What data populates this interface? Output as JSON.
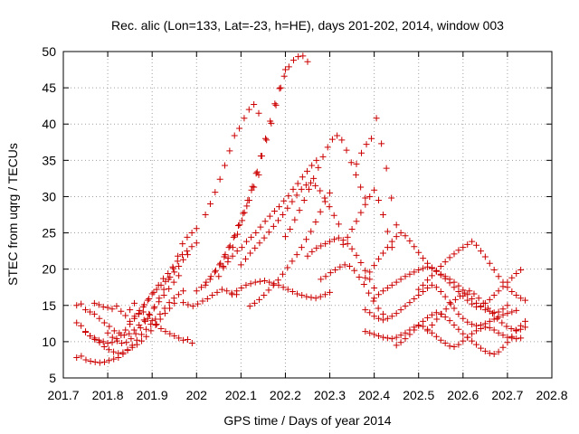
{
  "chart_data": {
    "type": "scatter",
    "title": "Rec. alic (Lon=133, Lat=-23, h=HE), days 201-202, 2014, window 003",
    "xlabel": "GPS time / Days of year 2014",
    "ylabel": "STEC from uqrg / TECUs",
    "xlim": [
      201.7,
      202.8
    ],
    "ylim": [
      5,
      50
    ],
    "xticks": [
      201.7,
      201.8,
      201.9,
      202,
      202.1,
      202.2,
      202.3,
      202.4,
      202.5,
      202.6,
      202.7,
      202.8
    ],
    "xtick_labels": [
      "201.7",
      "201.8",
      "201.9",
      "202",
      "202.1",
      "202.2",
      "202.3",
      "202.4",
      "202.5",
      "202.6",
      "202.7",
      "202.8"
    ],
    "yticks": [
      5,
      10,
      15,
      20,
      25,
      30,
      35,
      40,
      45,
      50
    ],
    "ytick_labels": [
      "5",
      "10",
      "15",
      "20",
      "25",
      "30",
      "35",
      "40",
      "45",
      "50"
    ],
    "grid": true,
    "marker": "plus",
    "color": "#cc0000",
    "series": [
      {
        "tracks": [
          {
            "x_start": 201.73,
            "x_end": 201.99,
            "y": [
              15.0,
              15.2,
              14.4,
              14.1,
              15.3,
              15.1,
              14.8,
              14.7,
              14.5,
              14.9,
              14.2,
              13.6,
              14.4,
              15.3,
              13.8,
              14.1,
              13.2,
              12.9,
              12.4,
              11.8,
              11.4,
              11.1,
              10.8,
              10.5,
              10.2,
              10.3,
              9.8
            ]
          },
          {
            "x_start": 201.73,
            "x_end": 201.98,
            "y": [
              12.6,
              12.2,
              11.3,
              10.8,
              10.5,
              10.2,
              10.0,
              9.8,
              9.9,
              10.4,
              10.9,
              11.6,
              12.4,
              13.2,
              13.9,
              14.8,
              15.7,
              16.6,
              17.2,
              17.8,
              18.3,
              18.9,
              19.6,
              20.4,
              21.3,
              22.0
            ]
          },
          {
            "x_start": 201.73,
            "x_end": 201.97,
            "y": [
              7.8,
              8.0,
              7.5,
              7.3,
              7.2,
              7.1,
              7.2,
              7.4,
              7.6,
              7.8,
              8.3,
              8.9,
              9.5,
              10.2,
              11.0,
              11.7,
              12.4,
              13.1,
              13.8,
              14.6,
              15.4,
              16.0,
              16.5,
              17.0
            ]
          },
          {
            "x_start": 201.75,
            "x_end": 201.95,
            "y": [
              11.4,
              10.8,
              10.3,
              9.9,
              9.3,
              8.9,
              8.6,
              8.4,
              8.5,
              8.8,
              9.2,
              9.6,
              10.1,
              10.7,
              11.5,
              12.3,
              13.1,
              13.9,
              14.6,
              15.3
            ]
          },
          {
            "x_start": 201.77,
            "x_end": 201.96,
            "y": [
              13.8,
              13.2,
              12.6,
              12.1,
              11.5,
              11.2,
              10.9,
              11.1,
              11.6,
              12.3,
              13.0,
              13.8,
              14.6,
              15.5,
              16.4,
              17.3,
              18.2,
              19.1
            ]
          },
          {
            "x_start": 201.8,
            "x_end": 202.0,
            "y": [
              11.2,
              10.6,
              10.1,
              9.8,
              9.9,
              10.4,
              11.1,
              11.9,
              12.8,
              13.7,
              14.8,
              16.0,
              17.2,
              18.6,
              20.1,
              21.8,
              23.5,
              24.4,
              25.0,
              25.6
            ]
          },
          {
            "x_start": 201.85,
            "x_end": 202.0,
            "y": [
              12.8,
              13.5,
              14.3,
              15.1,
              15.9,
              16.8,
              17.8,
              18.7,
              19.4,
              20.3,
              21.1,
              22.0,
              22.5,
              23.1,
              23.6
            ]
          },
          {
            "x_start": 201.97,
            "x_end": 202.09,
            "y": [
              15.4,
              15.1,
              14.9,
              15.2,
              15.6,
              15.9,
              16.4,
              16.8,
              17.2,
              17.0,
              16.7,
              16.5
            ]
          },
          {
            "x_start": 202.0,
            "x_end": 202.14,
            "y": [
              17.0,
              17.5,
              18.2,
              19.0,
              19.8,
              20.8,
              22.0,
              23.2,
              24.6,
              26.1,
              27.8,
              29.5,
              31.3,
              33.0
            ]
          },
          {
            "x_start": 202.02,
            "x_end": 202.2,
            "y": [
              17.8,
              18.6,
              19.6,
              20.6,
              21.7,
              23.0,
              24.4,
              26.0,
              27.7,
              29.5,
              31.4,
              33.4,
              35.6,
              37.8,
              40.1,
              42.6,
              45.0,
              47.5
            ]
          },
          {
            "x_start": 202.05,
            "x_end": 202.25,
            "y": [
              19.0,
              20.2,
              21.5,
              23.0,
              24.8,
              26.7,
              28.7,
              30.9,
              33.2,
              35.6,
              38.0,
              40.4,
              42.8,
              44.9,
              46.6,
              47.9,
              48.8,
              49.3,
              49.4,
              48.6
            ]
          },
          {
            "x_start": 202.06,
            "x_end": 202.27,
            "y": [
              20.4,
              21.0,
              21.8,
              22.5,
              23.0,
              23.8,
              24.4,
              25.0,
              25.8,
              26.6,
              27.3,
              28.0,
              28.6,
              29.4,
              30.1,
              31.0,
              31.8,
              32.7,
              33.5,
              34.3,
              35.0
            ]
          },
          {
            "x_start": 202.08,
            "x_end": 202.3,
            "y": [
              16.5,
              17.0,
              17.4,
              17.8,
              18.0,
              18.2,
              18.3,
              18.4,
              18.2,
              18.0,
              17.8,
              17.5,
              17.2,
              16.9,
              16.6,
              16.4,
              16.2,
              16.1,
              16.0,
              16.2,
              16.5,
              16.8
            ]
          },
          {
            "x_start": 202.02,
            "x_end": 202.14,
            "y": [
              27.5,
              29.0,
              30.6,
              32.4,
              34.3,
              36.3,
              38.4,
              39.4,
              40.8,
              42.0,
              42.7,
              41.5
            ]
          },
          {
            "x_start": 202.1,
            "x_end": 202.32,
            "y": [
              20.6,
              21.4,
              22.2,
              22.9,
              23.6,
              24.3,
              25.1,
              25.9,
              26.7,
              27.5,
              28.4,
              29.3,
              30.2,
              31.0,
              31.6,
              31.9,
              31.5,
              30.8,
              29.8,
              28.6,
              27.4,
              26.2
            ]
          },
          {
            "x_start": 202.12,
            "x_end": 202.3,
            "y": [
              14.9,
              15.3,
              15.8,
              16.4,
              17.1,
              17.8,
              18.5,
              19.3,
              20.2,
              21.1,
              22.0,
              23.0,
              24.1,
              25.2,
              26.5,
              27.9,
              29.3,
              30.5
            ]
          },
          {
            "x_start": 202.2,
            "x_end": 202.38,
            "y": [
              24.5,
              25.5,
              26.8,
              28.1,
              29.5,
              31.0,
              32.5,
              34.0,
              35.5,
              36.8,
              37.9,
              38.4,
              37.8,
              36.4,
              34.7,
              33.0,
              31.3,
              29.8
            ]
          },
          {
            "x_start": 202.25,
            "x_end": 202.4,
            "y": [
              21.8,
              22.4,
              22.9,
              23.2,
              23.5,
              23.8,
              24.1,
              24.3,
              24.0,
              23.5,
              22.8,
              21.9,
              20.9,
              19.8,
              18.6,
              17.4
            ]
          },
          {
            "x_start": 202.28,
            "x_end": 202.42,
            "y": [
              18.6,
              19.0,
              19.5,
              19.9,
              20.3,
              20.6,
              20.4,
              19.8,
              18.9,
              17.9,
              16.7,
              15.6,
              14.6,
              13.8
            ]
          },
          {
            "x_start": 202.33,
            "x_end": 202.44,
            "y": [
              23.4,
              24.4,
              25.5,
              26.6,
              27.8,
              28.9,
              30.0,
              30.9,
              29.5,
              27.5,
              25.2,
              23.0
            ]
          },
          {
            "x_start": 202.36,
            "x_end": 202.45,
            "y": [
              34.5,
              36.0,
              37.2,
              38.0,
              40.8,
              37.3,
              33.9,
              29.8,
              26.1
            ]
          },
          {
            "x_start": 202.38,
            "x_end": 202.73,
            "y": [
              11.4,
              11.2,
              11.0,
              10.8,
              10.6,
              10.5,
              10.4,
              10.6,
              10.9,
              11.2,
              11.6,
              12.0,
              12.3,
              12.1,
              11.7,
              11.2,
              10.7,
              10.2,
              9.8,
              9.4,
              9.3,
              9.6,
              10.1,
              10.6,
              11.1,
              11.5,
              11.8,
              12.0,
              11.9,
              11.6,
              11.2,
              10.9,
              10.6,
              10.5,
              10.4,
              10.5
            ]
          },
          {
            "x_start": 202.38,
            "x_end": 202.72,
            "y": [
              14.4,
              14.0,
              13.5,
              13.2,
              13.0,
              13.2,
              13.5,
              13.9,
              14.4,
              14.9,
              15.4,
              15.9,
              16.4,
              16.9,
              17.4,
              17.8,
              17.5,
              16.9,
              16.2,
              15.4,
              14.6,
              13.8,
              13.2,
              12.7,
              12.4,
              12.2,
              12.3,
              12.5,
              12.8,
              13.1,
              13.4,
              13.7,
              13.9,
              14.1,
              14.3
            ]
          },
          {
            "x_start": 202.4,
            "x_end": 202.73,
            "y": [
              16.0,
              16.5,
              17.0,
              17.4,
              17.8,
              18.2,
              18.6,
              19.0,
              19.3,
              19.6,
              19.9,
              20.1,
              20.3,
              20.1,
              19.7,
              19.2,
              18.7,
              18.1,
              17.5,
              16.9,
              16.3,
              15.7,
              15.2,
              14.8,
              14.9,
              15.3,
              15.8,
              16.4,
              17.0,
              17.6,
              18.2,
              18.8,
              19.4,
              19.9
            ]
          },
          {
            "x_start": 202.38,
            "x_end": 202.7,
            "y": [
              18.8,
              19.6,
              20.5,
              21.4,
              22.2,
              23.0,
              23.8,
              24.5,
              25.0,
              24.6,
              23.9,
              23.1,
              22.3,
              21.5,
              20.8,
              20.2,
              19.7,
              19.3,
              19.0,
              18.6,
              18.2,
              17.7,
              17.1,
              16.5,
              15.9,
              15.3,
              14.8,
              14.4,
              14.2,
              14.0,
              14.1,
              14.5,
              15.0
            ]
          },
          {
            "x_start": 202.45,
            "x_end": 202.74,
            "y": [
              9.5,
              9.9,
              10.4,
              11.0,
              11.6,
              12.2,
              12.8,
              13.3,
              13.7,
              14.0,
              13.8,
              13.4,
              12.9,
              12.3,
              11.7,
              11.1,
              10.6,
              10.1,
              9.6,
              9.1,
              8.7,
              8.4,
              8.3,
              8.6,
              9.2,
              9.9,
              10.7,
              11.5,
              12.2,
              12.8
            ]
          },
          {
            "x_start": 202.5,
            "x_end": 202.74,
            "y": [
              17.2,
              17.8,
              18.5,
              19.1,
              19.8,
              20.4,
              21.0,
              21.6,
              22.1,
              22.6,
              23.0,
              23.4,
              23.8,
              23.3,
              22.5,
              21.7,
              20.8,
              19.9,
              19.0,
              18.2,
              17.5,
              16.9,
              16.4,
              16.0,
              15.7
            ]
          },
          {
            "x_start": 202.52,
            "x_end": 202.74,
            "y": [
              11.5,
              12.3,
              13.1,
              13.8,
              14.5,
              15.2,
              15.8,
              16.3,
              16.7,
              17.0,
              16.6,
              16.0,
              15.3,
              14.6,
              13.9,
              13.2,
              12.6,
              12.1,
              11.8,
              11.6,
              11.7,
              12.0
            ]
          }
        ]
      }
    ]
  }
}
